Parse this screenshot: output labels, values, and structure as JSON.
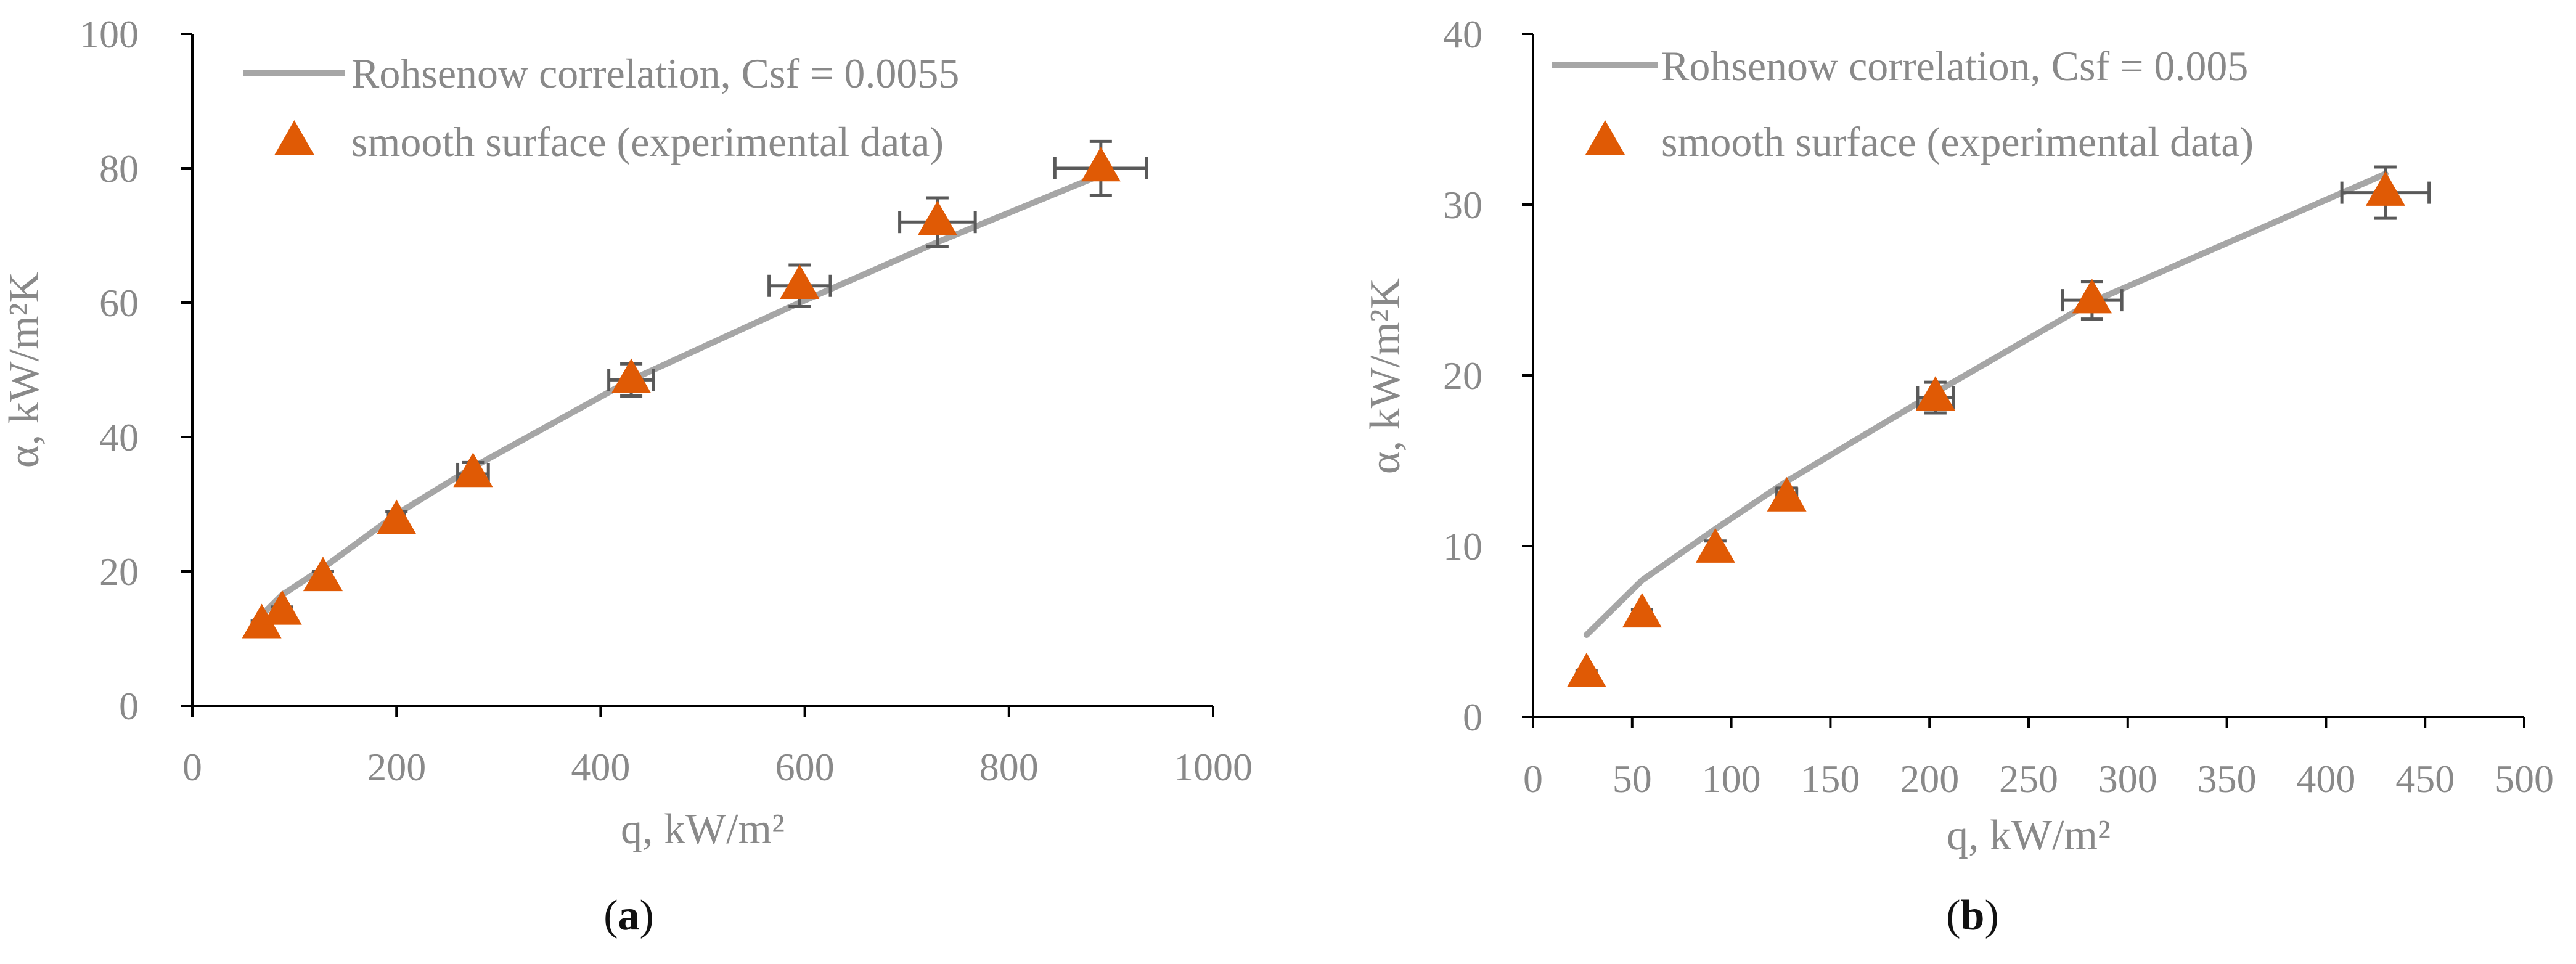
{
  "colors": {
    "line": "#a6a6a6",
    "marker": "#e05a05",
    "error_bar": "#595959",
    "axis": "#000000",
    "text": "#898989"
  },
  "chart_data": [
    {
      "id": "a",
      "type": "scatter",
      "caption_letter": "a",
      "xlabel": "q, kW/m²",
      "ylabel": "α, kW/m²K",
      "xlim": [
        0,
        1000
      ],
      "ylim": [
        0,
        100
      ],
      "xticks": [
        0,
        200,
        400,
        600,
        800,
        1000
      ],
      "xtick_labels": [
        "0",
        "200",
        "400",
        "600",
        "800",
        "1000"
      ],
      "yticks": [
        0,
        20,
        40,
        60,
        80,
        100
      ],
      "ytick_labels": [
        "0",
        "20",
        "40",
        "60",
        "80",
        "100"
      ],
      "legend_position": "top-left",
      "series": [
        {
          "name": "Rohsenow correlation, Csf = 0.0055",
          "kind": "line",
          "x": [
            68,
            88,
            128,
            200,
            275,
            430,
            595,
            730,
            890
          ],
          "y": [
            13.5,
            16.5,
            20.5,
            28.5,
            35.5,
            48.5,
            60,
            69,
            79
          ]
        },
        {
          "name": "smooth surface (experimental data)",
          "kind": "marker",
          "x": [
            68,
            88,
            128,
            200,
            275,
            430,
            595,
            730,
            890
          ],
          "y": [
            12,
            14,
            19,
            27.5,
            34.5,
            48.5,
            62.5,
            72,
            80
          ],
          "x_err": [
            0,
            0,
            0,
            8,
            15,
            22,
            30,
            37,
            45
          ],
          "y_err": [
            0.6,
            0.7,
            1,
            1.4,
            1.7,
            2.4,
            3.1,
            3.6,
            4
          ]
        }
      ]
    },
    {
      "id": "b",
      "type": "scatter",
      "caption_letter": "b",
      "xlabel": "q, kW/m²",
      "ylabel": "α, kW/m²K",
      "xlim": [
        0,
        500
      ],
      "ylim": [
        0,
        40
      ],
      "xticks": [
        0,
        50,
        100,
        150,
        200,
        250,
        300,
        350,
        400,
        450,
        500
      ],
      "xtick_labels": [
        "0",
        "50",
        "100",
        "150",
        "200",
        "250",
        "300",
        "350",
        "400",
        "450",
        "500"
      ],
      "yticks": [
        0,
        10,
        20,
        30,
        40
      ],
      "ytick_labels": [
        "0",
        "10",
        "20",
        "30",
        "40"
      ],
      "legend_position": "top-left",
      "series": [
        {
          "name": "Rohsenow correlation, Csf = 0.005",
          "kind": "line",
          "x": [
            27,
            55,
            92,
            128,
            203,
            282,
            430
          ],
          "y": [
            4.8,
            8,
            11,
            13.8,
            19,
            24.3,
            31.8
          ]
        },
        {
          "name": "smooth surface (experimental data)",
          "kind": "marker",
          "x": [
            27,
            55,
            92,
            128,
            203,
            282,
            430
          ],
          "y": [
            2.5,
            6,
            9.8,
            12.8,
            18.7,
            24.4,
            30.7
          ],
          "x_err": [
            0,
            0,
            0,
            5,
            9,
            15,
            22
          ],
          "y_err": [
            0.2,
            0.3,
            0.5,
            0.6,
            0.9,
            1.1,
            1.5
          ]
        }
      ]
    }
  ]
}
